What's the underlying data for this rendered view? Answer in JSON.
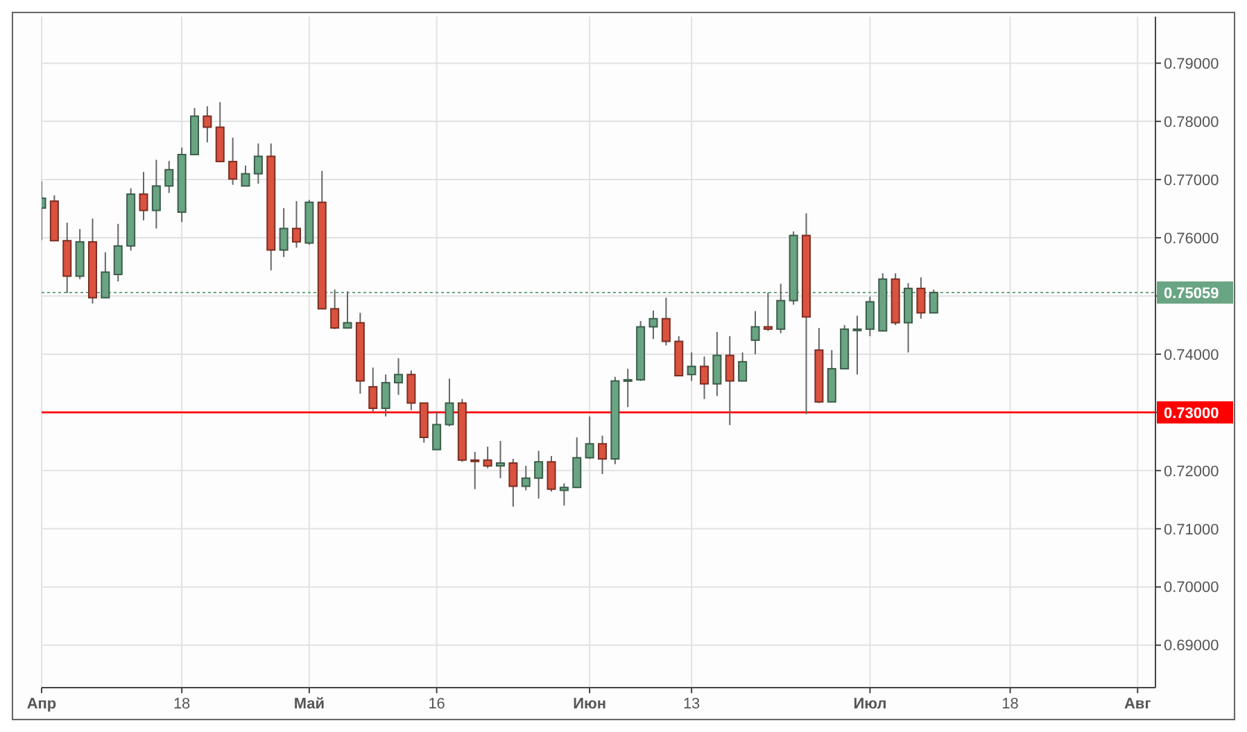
{
  "chart_data": {
    "type": "candlestick",
    "categories": [
      "Апр",
      null,
      null,
      null,
      null,
      null,
      null,
      null,
      null,
      null,
      null,
      "18",
      null,
      null,
      null,
      null,
      null,
      null,
      null,
      null,
      null,
      "Май",
      null,
      null,
      null,
      null,
      null,
      null,
      null,
      null,
      null,
      "16",
      null,
      null,
      null,
      null,
      null,
      null,
      null,
      null,
      null,
      null,
      null,
      "Июн",
      null,
      null,
      null,
      null,
      null,
      null,
      null,
      "13",
      null,
      null,
      null,
      null,
      null,
      null,
      null,
      null,
      null,
      null,
      null,
      null,
      null,
      "Июл",
      null,
      null,
      null,
      null,
      null,
      null,
      null,
      null,
      null,
      null,
      "18",
      null,
      null,
      null,
      null,
      null,
      null,
      null,
      null,
      null,
      "Авг",
      null
    ],
    "ohlc": [
      [
        0.7651,
        0.7697,
        0.7596,
        0.7668
      ],
      [
        0.7663,
        0.7673,
        0.7595,
        0.7595
      ],
      [
        0.7595,
        0.7626,
        0.7505,
        0.7534
      ],
      [
        0.7534,
        0.7615,
        0.7529,
        0.7593
      ],
      [
        0.7593,
        0.7633,
        0.7487,
        0.7497
      ],
      [
        0.7497,
        0.7575,
        0.7497,
        0.7541
      ],
      [
        0.7537,
        0.7624,
        0.7525,
        0.7586
      ],
      [
        0.7586,
        0.7685,
        0.7578,
        0.7675
      ],
      [
        0.7675,
        0.7713,
        0.763,
        0.7647
      ],
      [
        0.7647,
        0.7734,
        0.7616,
        0.7689
      ],
      [
        0.7689,
        0.7732,
        0.7677,
        0.7717
      ],
      [
        0.7644,
        0.7755,
        0.7627,
        0.7743
      ],
      [
        0.7743,
        0.7823,
        0.7743,
        0.7809
      ],
      [
        0.7809,
        0.7826,
        0.7764,
        0.779
      ],
      [
        0.779,
        0.7833,
        0.7731,
        0.7731
      ],
      [
        0.7731,
        0.7772,
        0.7691,
        0.7701
      ],
      [
        0.7689,
        0.7724,
        0.7689,
        0.771
      ],
      [
        0.771,
        0.7762,
        0.7693,
        0.774
      ],
      [
        0.774,
        0.7762,
        0.7544,
        0.7579
      ],
      [
        0.7579,
        0.7651,
        0.7567,
        0.7616
      ],
      [
        0.7616,
        0.7663,
        0.7583,
        0.7593
      ],
      [
        0.7591,
        0.7665,
        0.7588,
        0.7661
      ],
      [
        0.7661,
        0.7715,
        0.7478,
        0.7478
      ],
      [
        0.7478,
        0.7511,
        0.7443,
        0.7445
      ],
      [
        0.7445,
        0.7508,
        0.7445,
        0.7454
      ],
      [
        0.7454,
        0.7471,
        0.7332,
        0.7354
      ],
      [
        0.7344,
        0.7377,
        0.7302,
        0.7307
      ],
      [
        0.7307,
        0.7365,
        0.7293,
        0.7351
      ],
      [
        0.7351,
        0.7393,
        0.733,
        0.7365
      ],
      [
        0.7365,
        0.7372,
        0.7304,
        0.7316
      ],
      [
        0.7316,
        0.7316,
        0.7248,
        0.7257
      ],
      [
        0.7236,
        0.73,
        0.7236,
        0.7279
      ],
      [
        0.7279,
        0.7358,
        0.7276,
        0.7316
      ],
      [
        0.7316,
        0.7323,
        0.7215,
        0.7218
      ],
      [
        0.7218,
        0.7232,
        0.7168,
        0.7218
      ],
      [
        0.7218,
        0.7241,
        0.7204,
        0.7208
      ],
      [
        0.7208,
        0.7251,
        0.7187,
        0.7213
      ],
      [
        0.7213,
        0.722,
        0.7138,
        0.7173
      ],
      [
        0.7173,
        0.7208,
        0.7166,
        0.7187
      ],
      [
        0.7187,
        0.7234,
        0.7152,
        0.7215
      ],
      [
        0.7215,
        0.7225,
        0.7164,
        0.7168
      ],
      [
        0.7166,
        0.7178,
        0.714,
        0.7171
      ],
      [
        0.7171,
        0.7257,
        0.7171,
        0.7222
      ],
      [
        0.7222,
        0.7293,
        0.722,
        0.7246
      ],
      [
        0.7246,
        0.726,
        0.7194,
        0.722
      ],
      [
        0.722,
        0.7361,
        0.7211,
        0.7354
      ],
      [
        0.7356,
        0.7375,
        0.7309,
        0.7356
      ],
      [
        0.7356,
        0.7457,
        0.7354,
        0.7447
      ],
      [
        0.7447,
        0.7475,
        0.7426,
        0.7461
      ],
      [
        0.7461,
        0.7497,
        0.7415,
        0.7422
      ],
      [
        0.7422,
        0.7431,
        0.7363,
        0.7363
      ],
      [
        0.7365,
        0.7403,
        0.7354,
        0.7379
      ],
      [
        0.7379,
        0.7396,
        0.7323,
        0.7349
      ],
      [
        0.7349,
        0.7438,
        0.7328,
        0.7398
      ],
      [
        0.7398,
        0.7431,
        0.7278,
        0.7354
      ],
      [
        0.7354,
        0.7403,
        0.7354,
        0.7387
      ],
      [
        0.7424,
        0.7474,
        0.74,
        0.7447
      ],
      [
        0.7447,
        0.7506,
        0.744,
        0.7443
      ],
      [
        0.7443,
        0.7521,
        0.7436,
        0.7492
      ],
      [
        0.7492,
        0.7611,
        0.7485,
        0.7604
      ],
      [
        0.7604,
        0.7642,
        0.7297,
        0.7464
      ],
      [
        0.7407,
        0.7445,
        0.7316,
        0.7318
      ],
      [
        0.7318,
        0.7407,
        0.7318,
        0.7375
      ],
      [
        0.7375,
        0.745,
        0.7375,
        0.7443
      ],
      [
        0.7443,
        0.7466,
        0.7365,
        0.7443
      ],
      [
        0.7443,
        0.7499,
        0.7431,
        0.749
      ],
      [
        0.744,
        0.7539,
        0.744,
        0.7529
      ],
      [
        0.7529,
        0.7539,
        0.745,
        0.7454
      ],
      [
        0.7454,
        0.7522,
        0.7403,
        0.7513
      ],
      [
        0.7513,
        0.7532,
        0.7461,
        0.7471
      ],
      [
        0.7471,
        0.7511,
        0.7471,
        0.7506
      ],
      null,
      null,
      null,
      null,
      null,
      null,
      null,
      null,
      null,
      null,
      null,
      null,
      null,
      null,
      null,
      null,
      null
    ],
    "colors": [
      "#6aa583",
      "#d9533f",
      "#d9533f",
      "#6aa583",
      "#d9533f",
      "#6aa583",
      "#6aa583",
      "#6aa583",
      "#d9533f",
      "#6aa583",
      "#6aa583",
      "#6aa583",
      "#6aa583",
      "#d9533f",
      "#d9533f",
      "#d9533f",
      "#6aa583",
      "#6aa583",
      "#d9533f",
      "#6aa583",
      "#d9533f",
      "#6aa583",
      "#d9533f",
      "#d9533f",
      "#6aa583",
      "#d9533f",
      "#d9533f",
      "#6aa583",
      "#6aa583",
      "#d9533f",
      "#d9533f",
      "#6aa583",
      "#6aa583",
      "#d9533f",
      "#d9533f",
      "#d9533f",
      "#6aa583",
      "#d9533f",
      "#6aa583",
      "#6aa583",
      "#d9533f",
      "#6aa583",
      "#6aa583",
      "#6aa583",
      "#d9533f",
      "#6aa583",
      "#6aa583",
      "#6aa583",
      "#6aa583",
      "#d9533f",
      "#d9533f",
      "#6aa583",
      "#d9533f",
      "#6aa583",
      "#d9533f",
      "#6aa583",
      "#6aa583",
      "#d9533f",
      "#6aa583",
      "#6aa583",
      "#d9533f",
      "#d9533f",
      "#6aa583",
      "#6aa583",
      "#6aa583",
      "#6aa583",
      "#6aa583",
      "#d9533f",
      "#6aa583",
      "#d9533f",
      "#6aa583",
      null,
      null,
      null,
      null,
      null,
      null,
      null,
      null,
      null,
      null,
      null,
      null,
      null,
      null,
      null,
      null,
      null
    ],
    "ylim": [
      0.6827,
      0.798
    ],
    "yticks": [
      {
        "value": 0.69,
        "label": "0.69000"
      },
      {
        "value": 0.7,
        "label": "0.70000"
      },
      {
        "value": 0.71,
        "label": "0.71000"
      },
      {
        "value": 0.72,
        "label": "0.72000"
      },
      {
        "value": 0.73,
        "label": null
      },
      {
        "value": 0.74,
        "label": "0.74000"
      },
      {
        "value": 0.75,
        "label": null
      },
      {
        "value": 0.76,
        "label": "0.76000"
      },
      {
        "value": 0.77,
        "label": "0.77000"
      },
      {
        "value": 0.78,
        "label": "0.78000"
      },
      {
        "value": 0.79,
        "label": "0.79000"
      }
    ],
    "ref_lines": [
      {
        "axis": "y",
        "value": 0.75059,
        "label": "0.75059",
        "color": "#6aa583",
        "line_style": "dotted"
      },
      {
        "axis": "y",
        "value": 0.73,
        "label": "0.73000",
        "color": "#ff0000",
        "line_style": "solid"
      }
    ],
    "grid": true
  }
}
